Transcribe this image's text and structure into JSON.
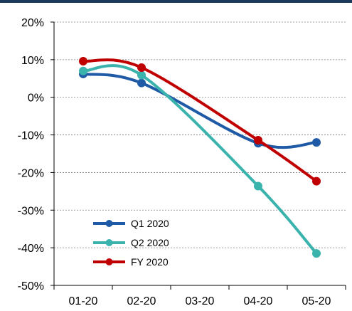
{
  "chart_data": {
    "type": "line",
    "categories": [
      "01-20",
      "02-20",
      "03-20",
      "04-20",
      "05-20"
    ],
    "ylim": [
      -50,
      20
    ],
    "yticks": [
      20,
      10,
      0,
      -10,
      -20,
      -30,
      -40,
      -50
    ],
    "ytick_labels": [
      "20%",
      "10%",
      "0%",
      "-10%",
      "-20%",
      "-30%",
      "-40%",
      "-50%"
    ],
    "grid": "horizontal-dashed",
    "legend_position": "bottom-left",
    "smooth": true,
    "series": [
      {
        "name": "Q1 2020",
        "color": "#1f5aa6",
        "values": [
          6.2,
          3.8,
          null,
          -12.2,
          -12.0
        ]
      },
      {
        "name": "Q2 2020",
        "color": "#3bb3ad",
        "values": [
          7.0,
          5.9,
          null,
          -23.6,
          -41.5
        ]
      },
      {
        "name": "FY 2020",
        "color": "#c00000",
        "values": [
          9.6,
          7.9,
          null,
          -11.4,
          -22.3
        ]
      }
    ]
  }
}
